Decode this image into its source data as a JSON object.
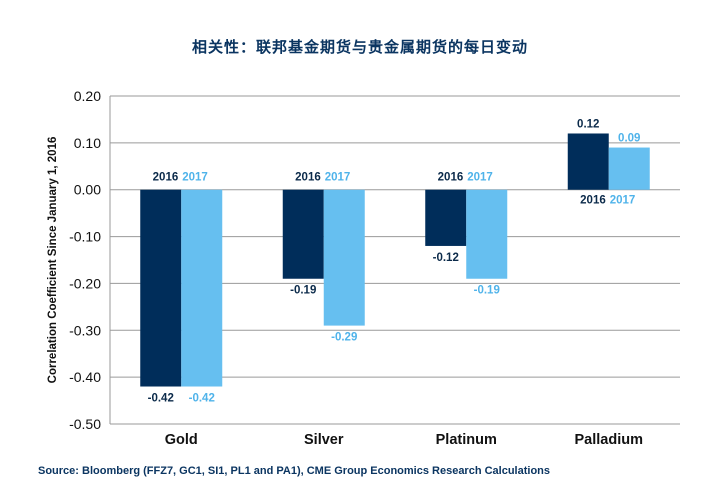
{
  "chart_data": {
    "type": "bar",
    "title": "相关性：联邦基金期货与贵金属期货的每日变动",
    "ylabel": "Correlation Coefficient Since January 1, 2016",
    "xlabel": "",
    "categories": [
      "Gold",
      "Silver",
      "Platinum",
      "Palladium"
    ],
    "series": [
      {
        "name": "2016",
        "values": [
          -0.42,
          -0.19,
          -0.12,
          0.12
        ],
        "color": "#002d5a"
      },
      {
        "name": "2017",
        "values": [
          -0.42,
          -0.29,
          -0.19,
          0.09
        ],
        "color": "#66bff0"
      }
    ],
    "value_labels": {
      "2016": [
        "-0.42",
        "-0.19",
        "-0.12",
        "0.12"
      ],
      "2017": [
        "-0.42",
        "-0.29",
        "-0.19",
        "0.09"
      ]
    },
    "ylim": [
      -0.5,
      0.2
    ],
    "yticks": [
      0.2,
      0.1,
      0.0,
      -0.1,
      -0.2,
      -0.3,
      -0.4,
      -0.5
    ],
    "ytick_labels": [
      "0.20",
      "0.10",
      "0.00",
      "-0.10",
      "-0.20",
      "-0.30",
      "-0.40",
      "-0.50"
    ],
    "grid": true,
    "legend": "inline year labels beside each bar pair"
  },
  "source": "Source: Bloomberg (FFZ7, GC1, SI1, PL1 and PA1), CME Group Economics Research Calculations"
}
